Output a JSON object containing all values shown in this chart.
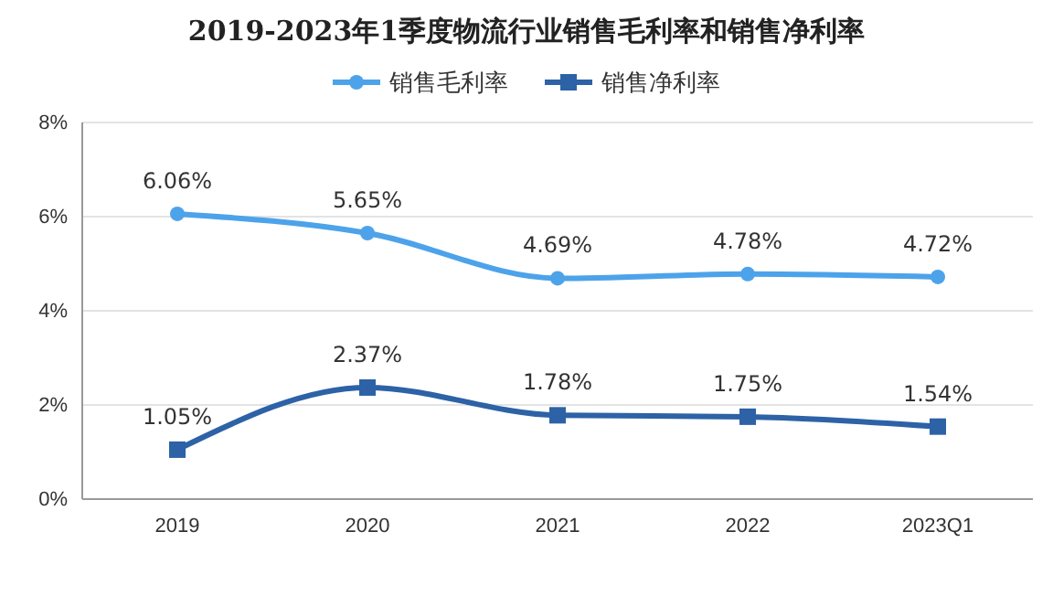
{
  "chart_data": {
    "type": "line",
    "title": "2019-2023年1季度物流行业销售毛利率和销售净利率",
    "categories": [
      "2019",
      "2020",
      "2021",
      "2022",
      "2023Q1"
    ],
    "series": [
      {
        "name": "销售毛利率",
        "color": "#4da3ea",
        "marker": "circle",
        "values": [
          6.06,
          5.65,
          4.69,
          4.78,
          4.72
        ],
        "value_labels": [
          "6.06%",
          "5.65%",
          "4.69%",
          "4.78%",
          "4.72%"
        ]
      },
      {
        "name": "销售净利率",
        "color": "#2d62a6",
        "marker": "square",
        "values": [
          1.05,
          2.37,
          1.78,
          1.75,
          1.54
        ],
        "value_labels": [
          "1.05%",
          "2.37%",
          "1.78%",
          "1.75%",
          "1.54%"
        ]
      }
    ],
    "ylim": [
      0,
      8
    ],
    "yticks": [
      {
        "value": 0,
        "label": "0%"
      },
      {
        "value": 2,
        "label": "2%"
      },
      {
        "value": 4,
        "label": "4%"
      },
      {
        "value": 6,
        "label": "6%"
      },
      {
        "value": 8,
        "label": "8%"
      }
    ],
    "grid": "y",
    "legend": "top",
    "line_style": "solid"
  }
}
